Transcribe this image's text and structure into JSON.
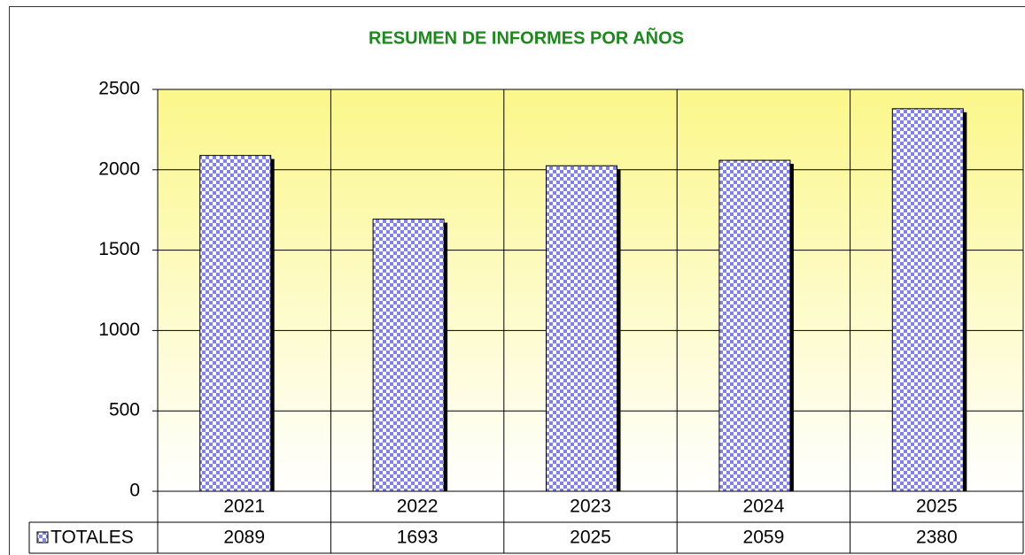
{
  "chart_data": {
    "type": "bar",
    "title": "RESUMEN DE INFORMES POR AÑOS",
    "categories": [
      "2021",
      "2022",
      "2023",
      "2024",
      "2025"
    ],
    "series": [
      {
        "name": "TOTALES",
        "color": "#8080f0",
        "values": [
          2089,
          1693,
          2025,
          2059,
          2380
        ]
      }
    ],
    "ylim": [
      0,
      2500
    ],
    "yticks": [
      0,
      500,
      1000,
      1500,
      2000,
      2500
    ],
    "grid": true
  }
}
